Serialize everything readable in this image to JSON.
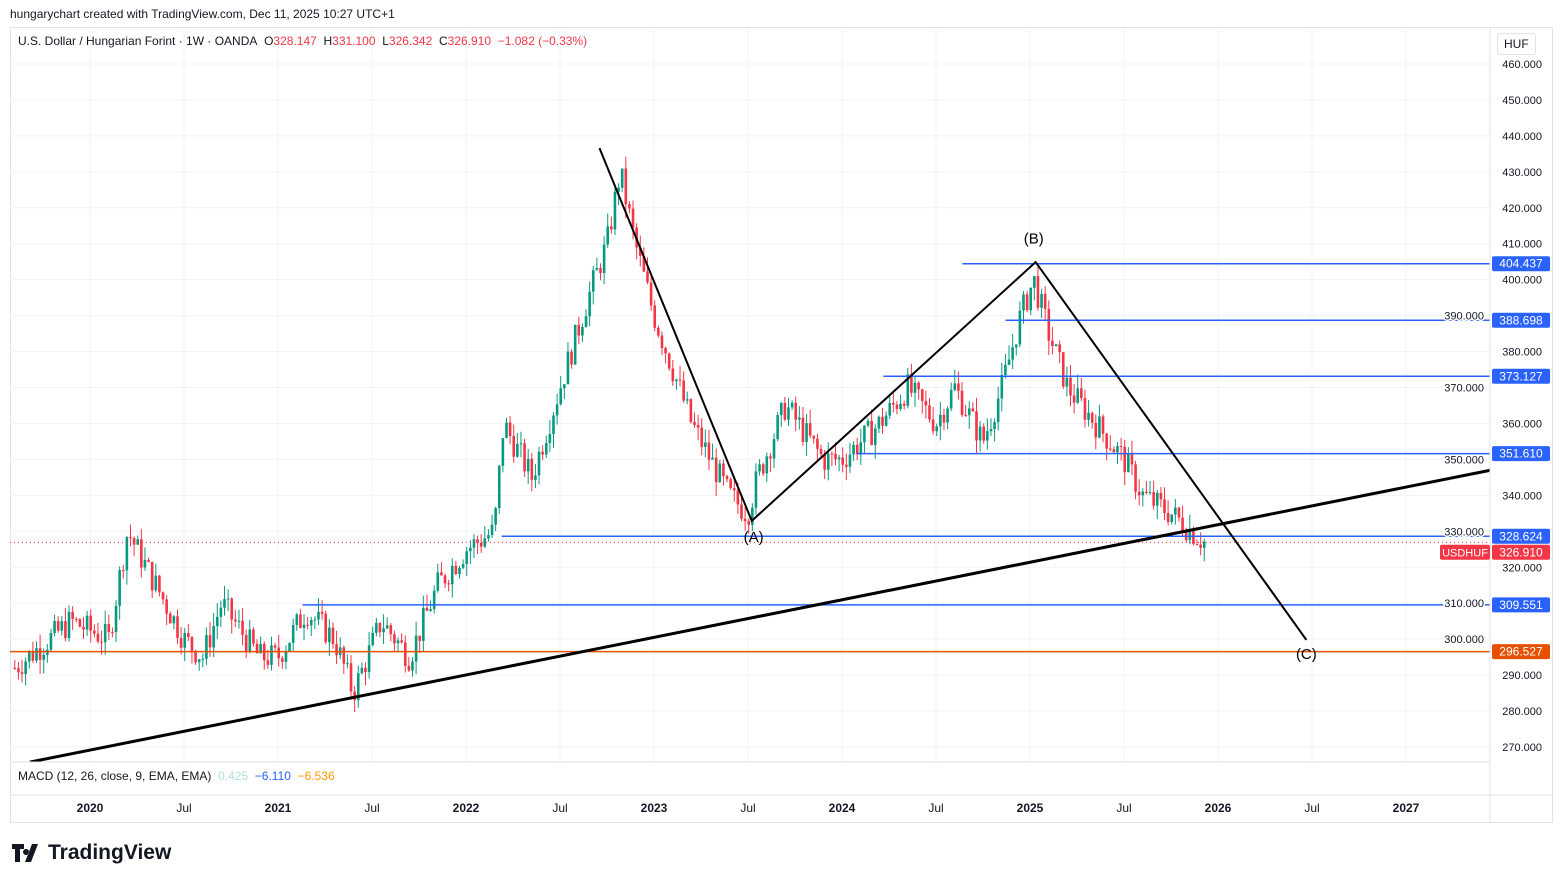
{
  "header": "hungarychart created with TradingView.com, Dec 11, 2025 10:27 UTC+1",
  "legend": {
    "symbol": "U.S. Dollar / Hungarian Forint · 1W · OANDA",
    "o_label": "O",
    "o": "328.147",
    "h_label": "H",
    "h": "331.100",
    "l_label": "L",
    "l": "326.342",
    "c_label": "C",
    "c": "326.910",
    "change": "−1.082 (−0.33%)"
  },
  "currency": "HUF",
  "macd": {
    "label": "MACD (12, 26, close, 9, EMA, EMA)",
    "hist": "0.425",
    "macd": "−6.110",
    "signal": "−6.536",
    "colors": {
      "hist": "#b2dfdb",
      "macd": "#2962ff",
      "signal": "#ff9800"
    }
  },
  "logo": "TradingView",
  "chart_data": {
    "type": "candlestick",
    "title": "U.S. Dollar / Hungarian Forint · 1W · OANDA",
    "ylim": [
      265,
      465
    ],
    "y_ticks": [
      "460.000",
      "450.000",
      "440.000",
      "430.000",
      "420.000",
      "410.000",
      "400.000",
      "390.000",
      "380.000",
      "370.000",
      "360.000",
      "350.000",
      "340.000",
      "330.000",
      "320.000",
      "310.000",
      "300.000",
      "290.000",
      "280.000",
      "270.000"
    ],
    "x_ticks": [
      {
        "t": 2020,
        "label": "2020"
      },
      {
        "t": 2020.5,
        "label": "Jul"
      },
      {
        "t": 2021,
        "label": "2021"
      },
      {
        "t": 2021.5,
        "label": "Jul"
      },
      {
        "t": 2022,
        "label": "2022"
      },
      {
        "t": 2022.5,
        "label": "Jul"
      },
      {
        "t": 2023,
        "label": "2023"
      },
      {
        "t": 2023.5,
        "label": "Jul"
      },
      {
        "t": 2024,
        "label": "2024"
      },
      {
        "t": 2024.5,
        "label": "Jul"
      },
      {
        "t": 2025,
        "label": "2025"
      },
      {
        "t": 2025.5,
        "label": "Jul"
      },
      {
        "t": 2026,
        "label": "2026"
      },
      {
        "t": 2026.5,
        "label": "Jul"
      },
      {
        "t": 2027,
        "label": "2027"
      }
    ],
    "approx_close_path": [
      [
        2019.6,
        292
      ],
      [
        2019.9,
        305
      ],
      [
        2020.1,
        300
      ],
      [
        2020.2,
        330
      ],
      [
        2020.4,
        310
      ],
      [
        2020.5,
        300
      ],
      [
        2020.6,
        295
      ],
      [
        2020.7,
        310
      ],
      [
        2020.9,
        295
      ],
      [
        2021.0,
        295
      ],
      [
        2021.15,
        308
      ],
      [
        2021.3,
        300
      ],
      [
        2021.4,
        285
      ],
      [
        2021.55,
        305
      ],
      [
        2021.7,
        295
      ],
      [
        2021.85,
        315
      ],
      [
        2022.0,
        325
      ],
      [
        2022.15,
        330
      ],
      [
        2022.2,
        360
      ],
      [
        2022.35,
        345
      ],
      [
        2022.5,
        370
      ],
      [
        2022.65,
        395
      ],
      [
        2022.75,
        410
      ],
      [
        2022.82,
        430
      ],
      [
        2022.9,
        410
      ],
      [
        2023.0,
        390
      ],
      [
        2023.2,
        360
      ],
      [
        2023.4,
        340
      ],
      [
        2023.5,
        335
      ],
      [
        2023.55,
        345
      ],
      [
        2023.7,
        365
      ],
      [
        2023.9,
        350
      ],
      [
        2024.0,
        350
      ],
      [
        2024.2,
        360
      ],
      [
        2024.35,
        370
      ],
      [
        2024.5,
        360
      ],
      [
        2024.6,
        370
      ],
      [
        2024.75,
        355
      ],
      [
        2024.85,
        370
      ],
      [
        2024.95,
        390
      ],
      [
        2025.02,
        400
      ],
      [
        2025.1,
        385
      ],
      [
        2025.2,
        370
      ],
      [
        2025.35,
        360
      ],
      [
        2025.5,
        350
      ],
      [
        2025.6,
        340
      ],
      [
        2025.75,
        335
      ],
      [
        2025.93,
        326.91
      ]
    ],
    "levels": [
      {
        "value": "404.437",
        "from": 2024.64,
        "color": "#2962ff"
      },
      {
        "value": "388.698",
        "from": 2024.87,
        "color": "#2962ff"
      },
      {
        "value": "373.127",
        "from": 2024.22,
        "color": "#2962ff"
      },
      {
        "value": "351.610",
        "from": 2024.08,
        "color": "#2962ff"
      },
      {
        "value": "328.624",
        "from": 2022.19,
        "color": "#2962ff"
      },
      {
        "value": "309.551",
        "from": 2021.13,
        "color": "#2962ff"
      },
      {
        "value": "296.527",
        "from": 2019.5,
        "color": "#e65100"
      }
    ],
    "wave_path": [
      [
        2022.71,
        436.6
      ],
      [
        2023.52,
        332.9
      ],
      [
        2025.03,
        404.9
      ],
      [
        2026.47,
        299.8
      ]
    ],
    "support_line": [
      [
        2019.68,
        265.8
      ],
      [
        2027.45,
        347
      ]
    ],
    "wave_labels": [
      {
        "text": "(A)",
        "t": 2023.53,
        "p": 327
      },
      {
        "text": "(B)",
        "t": 2025.02,
        "p": 410
      },
      {
        "text": "(C)",
        "t": 2026.47,
        "p": 294.5
      }
    ],
    "last_price": {
      "symbol": "USDHUF",
      "value": "326.910",
      "color": "#f23645"
    },
    "up_color": "#089981",
    "down_color": "#f23645"
  }
}
